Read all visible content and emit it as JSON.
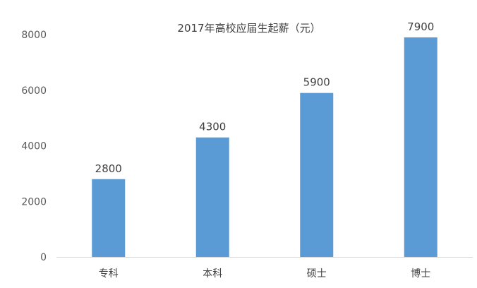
{
  "chart_data": {
    "type": "bar",
    "title": "2017年高校应届生起薪（元）",
    "categories": [
      "专科",
      "本科",
      "硕士",
      "博士"
    ],
    "values": [
      2800,
      4300,
      5900,
      7900
    ],
    "data_labels": [
      "2800",
      "4300",
      "5900",
      "7900"
    ],
    "yticks": [
      0,
      2000,
      4000,
      6000,
      8000
    ],
    "ylim": [
      0,
      8000
    ],
    "xlabel": "",
    "ylabel": "",
    "grid": false,
    "legend": false,
    "bar_color": "#5b9bd5"
  }
}
